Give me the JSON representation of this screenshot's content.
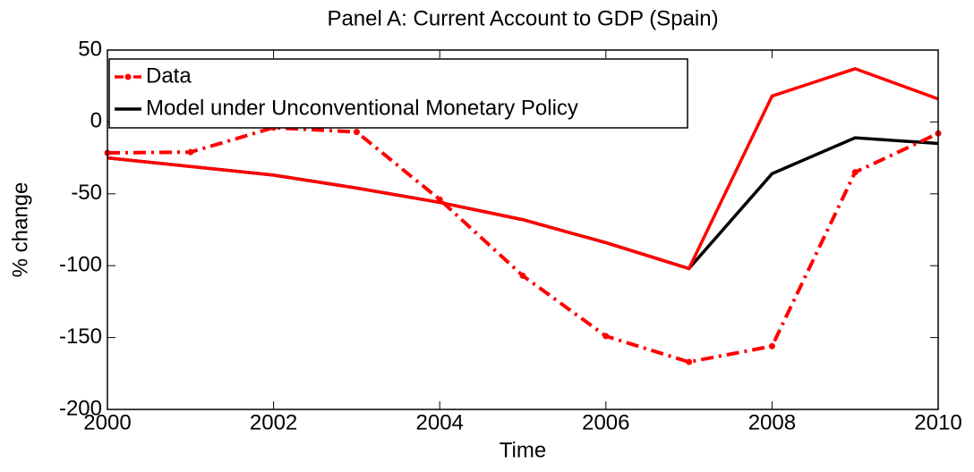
{
  "chart_data": {
    "type": "line",
    "title": "Panel A: Current Account to GDP (Spain)",
    "xlabel": "Time",
    "ylabel": "% change",
    "x": [
      2000,
      2001,
      2002,
      2003,
      2004,
      2005,
      2006,
      2007,
      2008,
      2009,
      2010
    ],
    "series": [
      {
        "name": "Model under Unconventional Monetary Policy",
        "color": "#000000",
        "style": "solid",
        "values": [
          -25,
          -31,
          -37,
          -46,
          -56,
          -68,
          -84,
          -102,
          -36,
          -11,
          -15
        ]
      },
      {
        "color": "#ff0000",
        "style": "solid",
        "values": [
          -25,
          -31,
          -37,
          -46,
          -56,
          -68,
          -84,
          -102,
          18,
          37,
          16
        ]
      },
      {
        "name": "Data",
        "color": "#ff0000",
        "style": "dashdot-dot",
        "values": [
          -21.5,
          -21,
          -4,
          -7,
          -54,
          -107,
          -149,
          -167,
          -156,
          -35,
          -8
        ]
      }
    ],
    "legend_order": [
      2,
      0
    ],
    "legend": "upper left",
    "xlim": [
      2000,
      2010
    ],
    "xticks": [
      2000,
      2002,
      2004,
      2006,
      2008,
      2010
    ],
    "ylim": [
      -200,
      50
    ],
    "yticks": [
      -200,
      -150,
      -100,
      -50,
      0,
      50
    ]
  }
}
